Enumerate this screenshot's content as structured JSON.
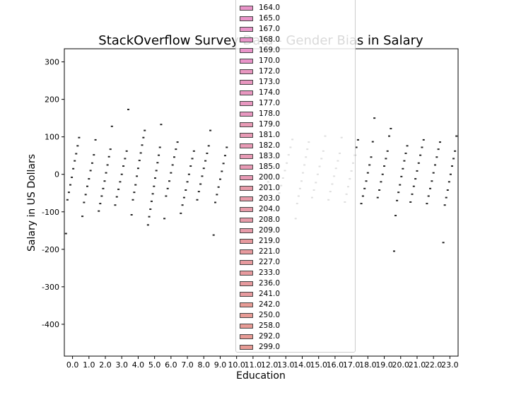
{
  "chart_data": {
    "type": "box",
    "title": "StackOverflow Survey Data - Gender Bias in Salary",
    "xlabel": "Education",
    "ylabel": "Salary in US Dollars",
    "ylim": [
      -485,
      335
    ],
    "yticks": [
      300,
      200,
      100,
      0,
      -100,
      -200,
      -300,
      -400
    ],
    "categories": [
      "0.0",
      "1.0",
      "2.0",
      "3.0",
      "4.0",
      "5.0",
      "6.0",
      "7.0",
      "8.0",
      "9.0",
      "10.0",
      "11.0",
      "12.0",
      "13.0",
      "14.0",
      "15.0",
      "16.0",
      "17.0",
      "18.0",
      "19.0",
      "20.0",
      "21.0",
      "22.0",
      "23.0"
    ],
    "grid": false,
    "legend": {
      "placement": "top-center",
      "entries": [
        "164.0",
        "165.0",
        "167.0",
        "168.0",
        "169.0",
        "170.0",
        "172.0",
        "173.0",
        "174.0",
        "177.0",
        "178.0",
        "179.0",
        "181.0",
        "182.0",
        "183.0",
        "185.0",
        "200.0",
        "201.0",
        "203.0",
        "204.0",
        "208.0",
        "209.0",
        "219.0",
        "221.0",
        "227.0",
        "233.0",
        "236.0",
        "241.0",
        "242.0",
        "250.0",
        "258.0",
        "292.0",
        "299.0"
      ]
    },
    "series_colors": [
      "#e994c9",
      "#e897c0",
      "#e89ab5",
      "#e79ba9",
      "#e79a9e",
      "#e79b95"
    ],
    "median_marks": [
      {
        "x": "0.0",
        "values": [
          -158,
          -68,
          -48,
          -28,
          -8,
          15,
          36,
          55,
          76,
          98
        ]
      },
      {
        "x": "1.0",
        "values": [
          -112,
          -75,
          -54,
          -32,
          -12,
          10,
          30,
          52,
          92
        ]
      },
      {
        "x": "2.0",
        "values": [
          -98,
          -78,
          -58,
          -38,
          -18,
          4,
          25,
          47,
          67,
          128
        ]
      },
      {
        "x": "3.0",
        "values": [
          -82,
          -60,
          -40,
          -20,
          0,
          22,
          42,
          62,
          173
        ]
      },
      {
        "x": "4.0",
        "values": [
          -108,
          -68,
          -48,
          -28,
          -5,
          16,
          37,
          57,
          78,
          98,
          117
        ]
      },
      {
        "x": "5.0",
        "values": [
          -135,
          -113,
          -93,
          -72,
          -52,
          -32,
          -10,
          10,
          31,
          51,
          72,
          133
        ]
      },
      {
        "x": "6.0",
        "values": [
          -118,
          -58,
          -38,
          -18,
          4,
          25,
          46,
          67,
          86
        ]
      },
      {
        "x": "7.0",
        "values": [
          -104,
          -82,
          -62,
          -42,
          -20,
          0,
          22,
          42,
          62
        ]
      },
      {
        "x": "8.0",
        "values": [
          -68,
          -46,
          -26,
          -5,
          16,
          36,
          56,
          76,
          117
        ]
      },
      {
        "x": "9.0",
        "values": [
          -162,
          -75,
          -54,
          -34,
          -13,
          8,
          29,
          50,
          72
        ]
      },
      {
        "x": "12.0",
        "values": [
          -60,
          -40,
          -20,
          0,
          20,
          42
        ]
      },
      {
        "x": "13.0",
        "values": [
          -50,
          -30,
          -10,
          10,
          30,
          52,
          72,
          93
        ]
      },
      {
        "x": "14.0",
        "values": [
          -118,
          -78,
          -58,
          -38,
          -18,
          4,
          25,
          46,
          67,
          86
        ]
      },
      {
        "x": "15.0",
        "values": [
          -62,
          -42,
          -22,
          0,
          21,
          42,
          62,
          102
        ]
      },
      {
        "x": "16.0",
        "values": [
          -68,
          -46,
          -26,
          -5,
          16,
          36,
          56,
          98
        ]
      },
      {
        "x": "17.0",
        "values": [
          -74,
          -53,
          -33,
          -12,
          9,
          30,
          51,
          72,
          92
        ]
      },
      {
        "x": "18.0",
        "values": [
          -78,
          -58,
          -38,
          -18,
          4,
          25,
          46,
          87,
          150
        ]
      },
      {
        "x": "19.0",
        "values": [
          -62,
          -42,
          -20,
          0,
          22,
          42,
          62,
          102,
          122
        ]
      },
      {
        "x": "20.0",
        "values": [
          -205,
          -110,
          -70,
          -48,
          -28,
          -6,
          15,
          36,
          56,
          76
        ]
      },
      {
        "x": "21.0",
        "values": [
          -74,
          -53,
          -32,
          -12,
          9,
          30,
          51,
          72,
          92
        ]
      },
      {
        "x": "22.0",
        "values": [
          -78,
          -58,
          -38,
          -18,
          4,
          25,
          46,
          67,
          86
        ]
      },
      {
        "x": "23.0",
        "values": [
          -182,
          -82,
          -62,
          -42,
          -20,
          0,
          22,
          42,
          62,
          102
        ]
      }
    ]
  }
}
